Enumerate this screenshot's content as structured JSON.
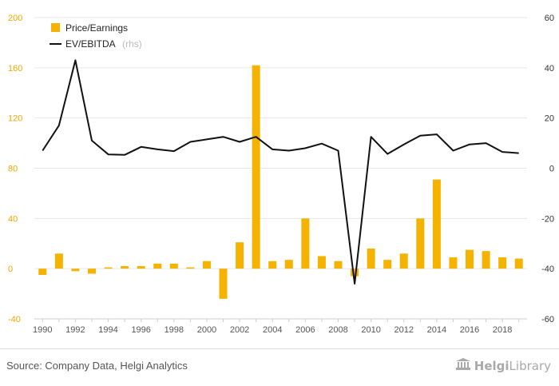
{
  "chart_data": {
    "type": "bar+line",
    "x": [
      1990,
      1991,
      1992,
      1993,
      1994,
      1995,
      1996,
      1997,
      1998,
      1999,
      2000,
      2001,
      2002,
      2003,
      2004,
      2005,
      2006,
      2007,
      2008,
      2009,
      2010,
      2011,
      2012,
      2013,
      2014,
      2015,
      2016,
      2017,
      2018,
      2019
    ],
    "series": [
      {
        "name": "Price/Earnings",
        "type": "bar",
        "axis": "left",
        "color": "#f5b300",
        "values": [
          -5,
          12,
          -2,
          -4,
          1,
          2,
          2,
          4,
          4,
          1,
          6,
          -24,
          21,
          162,
          6,
          7,
          40,
          10,
          6,
          -6,
          16,
          7,
          12,
          40,
          71,
          9,
          15,
          14,
          9,
          8
        ]
      },
      {
        "name": "EV/EBITDA",
        "unit": "(rhs)",
        "type": "line",
        "axis": "right",
        "color": "#111111",
        "values": [
          7,
          17,
          43,
          11,
          5.5,
          5.3,
          8.5,
          7.5,
          6.8,
          10.5,
          11.5,
          12.5,
          10.5,
          12.5,
          7.5,
          7,
          8,
          9.8,
          7,
          -46,
          12.5,
          5.7,
          9.5,
          13,
          13.5,
          7,
          9.5,
          10,
          6.5,
          6
        ]
      }
    ],
    "y_left": {
      "min": -40,
      "max": 200,
      "ticks": [
        -40,
        0,
        40,
        80,
        120,
        160,
        200
      ]
    },
    "y_right": {
      "min": -60,
      "max": 60,
      "ticks": [
        -60,
        -40,
        -20,
        0,
        20,
        40,
        60
      ]
    },
    "x_tick_labels": [
      "1990",
      "1992",
      "1994",
      "1996",
      "1998",
      "2000",
      "2002",
      "2004",
      "2006",
      "2008",
      "2010",
      "2012",
      "2014",
      "2016",
      "2018"
    ],
    "grid": true,
    "legend_position": "top-left"
  },
  "legend": {
    "bar_label": "Price/Earnings",
    "line_label": "EV/EBITDA",
    "line_unit": "(rhs)"
  },
  "footer": {
    "source": "Source: Company Data, Helgi Analytics",
    "logo_text_1": "Helgi",
    "logo_text_2": "Library"
  }
}
